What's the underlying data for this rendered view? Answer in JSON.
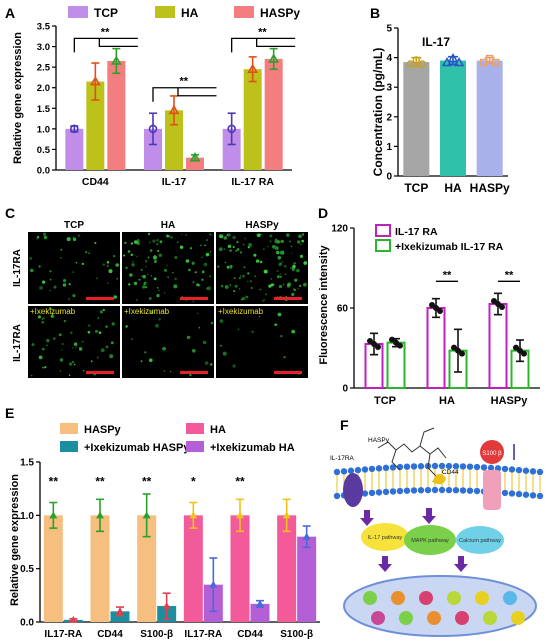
{
  "panel_labels": {
    "A": "A",
    "B": "B",
    "C": "C",
    "D": "D",
    "E": "E",
    "F": "F"
  },
  "colors": {
    "tcp": "#c08ee8",
    "ha": "#bcc21a",
    "haspy": "#f47d80",
    "b_tcp": "#a5a5a5",
    "b_ha": "#2fc2a8",
    "b_haspy": "#a9b1ea",
    "e_haspy": "#f6be7f",
    "e_ixe_haspy": "#1b8fa0",
    "e_ha": "#f25a9a",
    "e_ixe_ha": "#b55fd6",
    "d_il17ra": "#c020c0",
    "d_ixe": "#2cb52c",
    "scale_bar": "#e8202a"
  },
  "chart_data": [
    {
      "panel": "A",
      "type": "bar",
      "ylabel": "Relative gene expression",
      "ylim": [
        0,
        3.5
      ],
      "yticks": [
        0,
        0.5,
        1,
        1.5,
        2,
        2.5,
        3,
        3.5
      ],
      "yticklabels": [
        "0.0",
        "0.5",
        "1.0",
        "1.5",
        "2.0",
        "2.5",
        "3.0",
        "3.5"
      ],
      "categories": [
        "CD44",
        "IL-17",
        "IL-17 RA"
      ],
      "series": [
        {
          "name": "TCP",
          "values": [
            1.0,
            1.0,
            1.0
          ],
          "errors": [
            0.07,
            0.38,
            0.38
          ]
        },
        {
          "name": "HA",
          "values": [
            2.15,
            1.45,
            2.45
          ],
          "errors": [
            0.45,
            0.35,
            0.3
          ]
        },
        {
          "name": "HASPy",
          "values": [
            2.65,
            0.3,
            2.7
          ],
          "errors": [
            0.3,
            0.07,
            0.25
          ]
        }
      ],
      "significance": [
        "**",
        "**",
        "**"
      ]
    },
    {
      "panel": "B",
      "type": "bar",
      "title": "IL-17",
      "ylabel": "Concentration (pg/mL)",
      "ylim": [
        0,
        5
      ],
      "yticks": [
        0,
        1,
        2,
        3,
        4,
        5
      ],
      "yticklabels": [
        "0",
        "1",
        "2",
        "3",
        "4",
        "5"
      ],
      "categories": [
        "TCP",
        "HA",
        "HASPy"
      ],
      "values": [
        3.85,
        3.9,
        3.9
      ],
      "errors": [
        0.15,
        0.13,
        0.1
      ]
    },
    {
      "panel": "D",
      "type": "bar",
      "ylabel": "Fluorescence intensity",
      "ylim": [
        0,
        120
      ],
      "yticks": [
        0,
        60,
        120
      ],
      "yticklabels": [
        "0",
        "60",
        "120"
      ],
      "categories": [
        "TCP",
        "HA",
        "HASPy"
      ],
      "series": [
        {
          "name": "IL-17 RA",
          "values": [
            33,
            60,
            63
          ],
          "errors": [
            8,
            7,
            8
          ]
        },
        {
          "name": "+Ixekizumab IL-17 RA",
          "values": [
            34,
            28,
            28
          ],
          "errors": [
            3,
            16,
            8
          ]
        }
      ],
      "significance": [
        "**",
        "**"
      ]
    },
    {
      "panel": "E",
      "type": "bar",
      "ylabel": "Relative gene expression",
      "ylim": [
        0,
        1.5
      ],
      "yticks": [
        0,
        0.5,
        1,
        1.5
      ],
      "yticklabels": [
        "0.0",
        "0.5",
        "1.0",
        "1.5"
      ],
      "categories": [
        "IL17-RA",
        "CD44",
        "S100-β",
        "IL17-RA",
        "CD44",
        "S100-β"
      ],
      "series": [
        {
          "name": "HASPy",
          "values": [
            1.0,
            1.0,
            1.0,
            null,
            null,
            null
          ],
          "errors": [
            0.12,
            0.15,
            0.2,
            null,
            null,
            null
          ]
        },
        {
          "name": "+Ixekizumab HASPy",
          "values": [
            0.02,
            0.1,
            0.15,
            null,
            null,
            null
          ],
          "errors": [
            0.01,
            0.04,
            0.12,
            null,
            null,
            null
          ]
        },
        {
          "name": "HA",
          "values": [
            null,
            null,
            null,
            1.0,
            1.0,
            1.0
          ],
          "errors": [
            null,
            null,
            null,
            0.12,
            0.15,
            0.15
          ]
        },
        {
          "name": "+Ixekizumab HA",
          "values": [
            null,
            null,
            null,
            0.35,
            0.17,
            0.8
          ],
          "errors": [
            null,
            null,
            null,
            0.25,
            0.03,
            0.1
          ]
        }
      ],
      "significance": [
        "**",
        "**",
        "**",
        "*",
        "**",
        ""
      ]
    }
  ],
  "panel_c": {
    "col_labels": [
      "TCP",
      "HA",
      "HASPy"
    ],
    "row_labels": [
      "IL-17RA",
      "IL-17RA"
    ],
    "treatment_label": "+Ixekizumab"
  },
  "panel_f": {
    "haspy": "HASPy",
    "il17ra": "IL-17RA",
    "cd44": "CD44",
    "s100b": "S100 β",
    "pathways": [
      "IL-17 pathway",
      "MAPK pathway",
      "Calcium pathway"
    ]
  }
}
